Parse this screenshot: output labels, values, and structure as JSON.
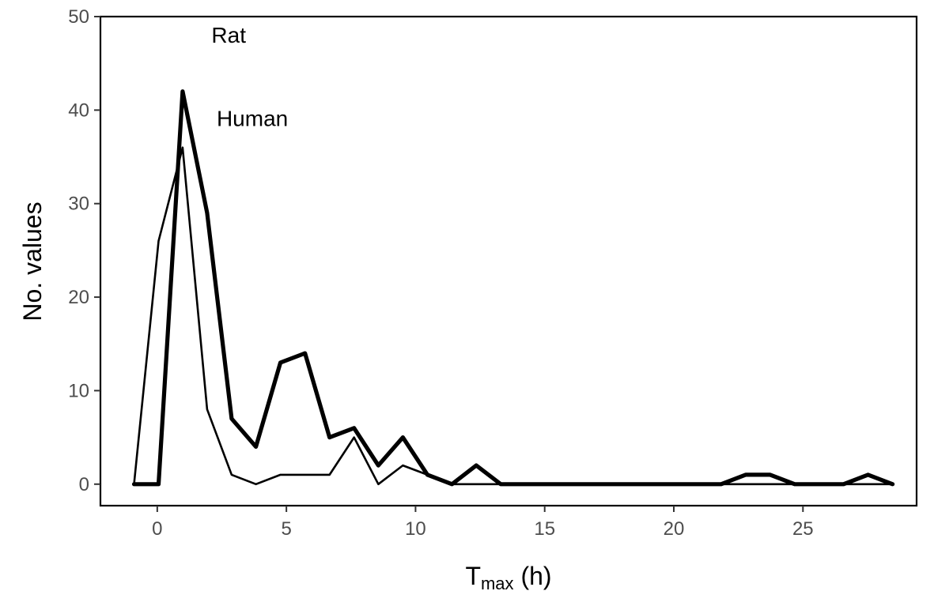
{
  "chart_data": {
    "type": "line",
    "xlabel_main": "T",
    "xlabel_sub": "max",
    "xlabel_unit": " (h)",
    "ylabel": "No. values",
    "xlim": [
      -2.2,
      29.4
    ],
    "ylim": [
      -2.3,
      50
    ],
    "x_ticks": [
      0,
      5,
      10,
      15,
      20,
      25
    ],
    "y_ticks": [
      0,
      10,
      20,
      30,
      40,
      50
    ],
    "grid": false,
    "annotations": [
      {
        "text": "Rat",
        "x": 2.1,
        "y": 47.2
      },
      {
        "text": "Human",
        "x": 2.3,
        "y": 38.3
      }
    ],
    "series": [
      {
        "color": "#000000",
        "weight": "heavy",
        "x": [
          -0.9,
          0.05,
          0.98,
          1.93,
          2.88,
          3.82,
          4.77,
          5.72,
          6.67,
          7.62,
          8.56,
          9.51,
          10.46,
          11.41,
          12.35,
          13.3,
          14.25,
          15.2,
          16.15,
          17.09,
          18.04,
          18.99,
          19.94,
          20.88,
          21.83,
          22.78,
          23.73,
          24.68,
          25.62,
          26.57,
          27.52,
          28.47
        ],
        "y": [
          0,
          0,
          42,
          29,
          7,
          4,
          13,
          14,
          5,
          6,
          2,
          5,
          1,
          0,
          2,
          0,
          0,
          0,
          0,
          0,
          0,
          0,
          0,
          0,
          0,
          1,
          1,
          0,
          0,
          0,
          1,
          0
        ]
      },
      {
        "color": "#000000",
        "weight": "light",
        "x": [
          -0.9,
          0.05,
          0.98,
          1.93,
          2.88,
          3.82,
          4.77,
          5.72,
          6.67,
          7.62,
          8.56,
          9.51,
          10.46,
          11.41,
          12.35,
          13.3,
          14.25,
          15.2,
          16.15,
          17.09,
          18.04,
          18.99,
          19.94,
          20.88,
          21.83,
          22.78,
          23.73,
          24.68,
          25.62,
          26.57,
          27.52,
          28.47
        ],
        "y": [
          0,
          26,
          36,
          8,
          1,
          0,
          1,
          1,
          1,
          5,
          0,
          2,
          1,
          0,
          0,
          0,
          0,
          0,
          0,
          0,
          0,
          0,
          0,
          0,
          0,
          0,
          0,
          0,
          0,
          0,
          0,
          0
        ]
      }
    ]
  }
}
